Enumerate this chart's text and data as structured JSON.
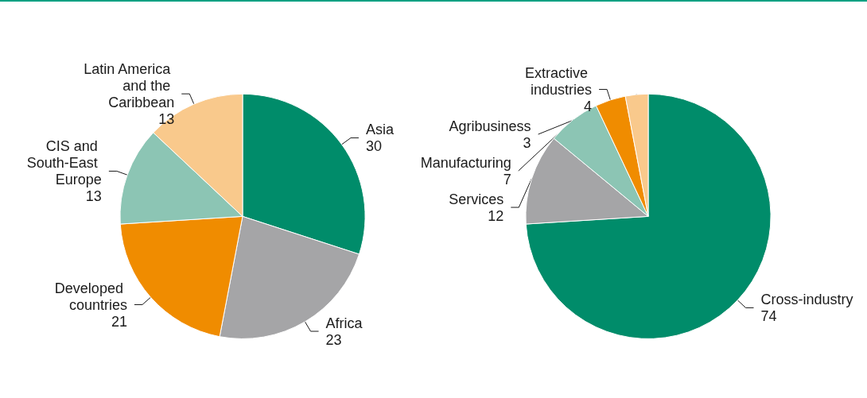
{
  "chart_data": [
    {
      "type": "pie",
      "categories": [
        "Asia",
        "Africa",
        "Developed countries",
        "CIS and South-East Europe",
        "Latin America and the Caribbean"
      ],
      "values": [
        30,
        23,
        21,
        13,
        13
      ],
      "colors": [
        "#008c6a",
        "#a5a5a7",
        "#f08c00",
        "#8cc5b4",
        "#f9c98c"
      ],
      "data_labels": true,
      "legend": false
    },
    {
      "type": "pie",
      "categories": [
        "Cross-industry",
        "Services",
        "Manufacturing",
        "Extractive industries",
        "Agribusiness"
      ],
      "values": [
        74,
        12,
        7,
        4,
        3
      ],
      "colors": [
        "#008c6a",
        "#a5a5a7",
        "#8cc5b4",
        "#f08c00",
        "#f9c98c"
      ],
      "data_labels": true,
      "legend": false
    }
  ]
}
